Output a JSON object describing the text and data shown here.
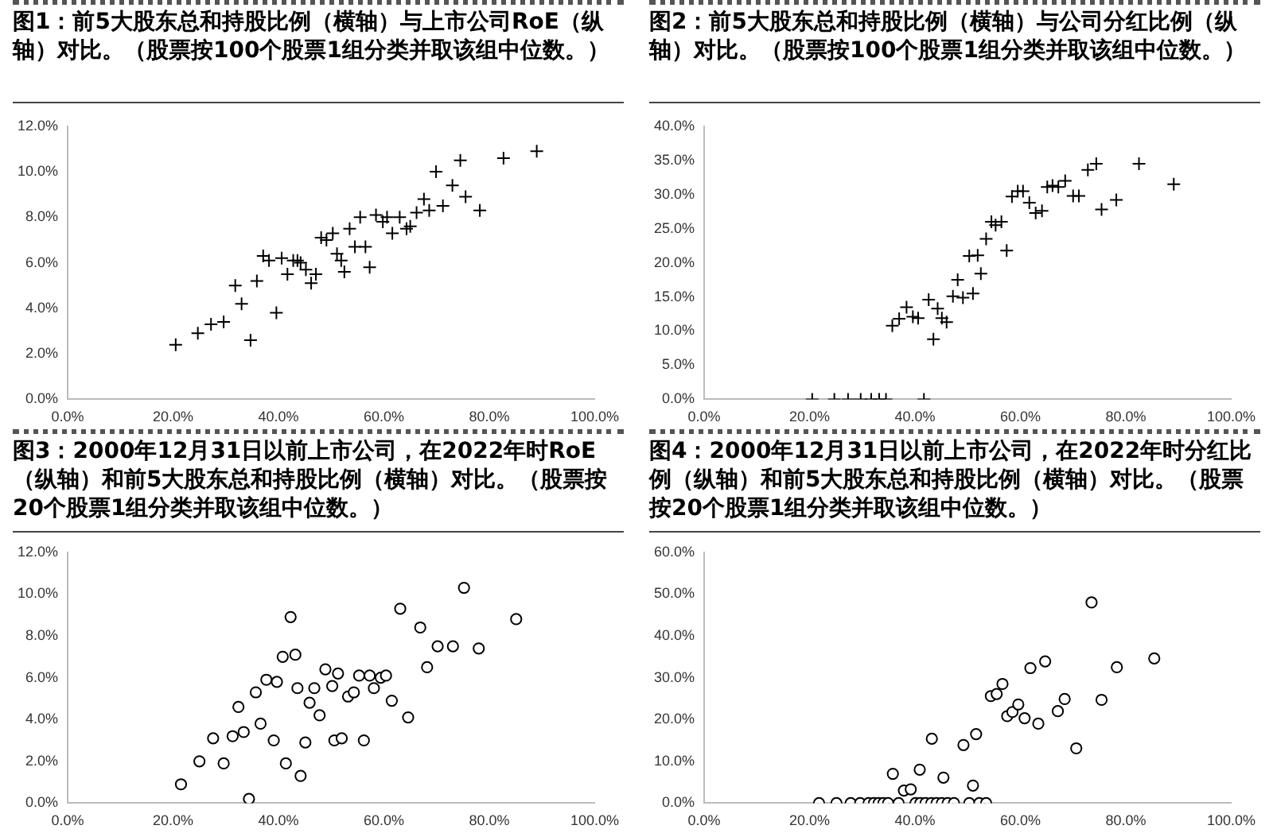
{
  "chart_data": [
    {
      "type": "scatter",
      "title": "图1：前5大股东总和持股比例（横轴）与上市公司RoE（纵轴）对比。（股票按100个股票1组分类并取该组中位数。）",
      "marker": "cross",
      "grid": false,
      "legend": false,
      "xlim": [
        0,
        100
      ],
      "xticks": [
        {
          "value": 0,
          "label": "0.0%"
        },
        {
          "value": 20,
          "label": "20.0%"
        },
        {
          "value": 40,
          "label": "40.0%"
        },
        {
          "value": 60,
          "label": "60.0%"
        },
        {
          "value": 80,
          "label": "80.0%"
        },
        {
          "value": 100,
          "label": "100.0%"
        }
      ],
      "ylim": [
        0,
        12
      ],
      "yticks": [
        {
          "value": 0,
          "label": "0.0%"
        },
        {
          "value": 2,
          "label": "2.0%"
        },
        {
          "value": 4,
          "label": "4.0%"
        },
        {
          "value": 6,
          "label": "6.0%"
        },
        {
          "value": 8,
          "label": "8.0%"
        },
        {
          "value": 10,
          "label": "10.0%"
        },
        {
          "value": 12,
          "label": "12.0%"
        }
      ],
      "series": [
        {
          "color": "#000000",
          "x": [
            20.5,
            24.7,
            27.2,
            29.6,
            31.8,
            33.0,
            34.7,
            35.9,
            37.1,
            38.2,
            39.6,
            40.6,
            41.7,
            42.8,
            43.6,
            44.2,
            45.2,
            46.2,
            47.1,
            48.1,
            49.1,
            50.3,
            51.1,
            51.9,
            52.5,
            53.5,
            54.5,
            55.5,
            56.5,
            57.3,
            58.5,
            59.8,
            60.6,
            61.6,
            63.0,
            64.3,
            65.0,
            66.2,
            67.6,
            68.6,
            69.9,
            71.2,
            73.0,
            74.5,
            75.5,
            78.2,
            82.7,
            89.0
          ],
          "values": [
            2.4,
            2.9,
            3.3,
            3.4,
            5.0,
            4.2,
            2.6,
            5.2,
            6.3,
            6.1,
            3.8,
            6.2,
            5.5,
            6.1,
            6.1,
            6.0,
            5.7,
            5.1,
            5.5,
            7.1,
            7.0,
            7.3,
            6.4,
            6.1,
            5.6,
            7.5,
            6.7,
            8.0,
            6.7,
            5.8,
            8.1,
            7.8,
            8.0,
            7.3,
            8.0,
            7.5,
            7.6,
            8.2,
            8.8,
            8.3,
            10.0,
            8.5,
            9.4,
            10.5,
            8.9,
            8.3,
            10.6,
            10.9
          ]
        }
      ]
    },
    {
      "type": "scatter",
      "title": "图2：前5大股东总和持股比例（横轴）与公司分红比例（纵轴）对比。（股票按100个股票1组分类并取该组中位数。）",
      "marker": "cross",
      "grid": false,
      "legend": false,
      "xlim": [
        0,
        100
      ],
      "xticks": [
        {
          "value": 0,
          "label": "0.0%"
        },
        {
          "value": 20,
          "label": "20.0%"
        },
        {
          "value": 40,
          "label": "40.0%"
        },
        {
          "value": 60,
          "label": "60.0%"
        },
        {
          "value": 80,
          "label": "80.0%"
        },
        {
          "value": 100,
          "label": "100.0%"
        }
      ],
      "ylim": [
        0,
        40
      ],
      "yticks": [
        {
          "value": 0,
          "label": "0.0%"
        },
        {
          "value": 5,
          "label": "5.0%"
        },
        {
          "value": 10,
          "label": "10.0%"
        },
        {
          "value": 15,
          "label": "15.0%"
        },
        {
          "value": 20,
          "label": "20.0%"
        },
        {
          "value": 25,
          "label": "25.0%"
        },
        {
          "value": 30,
          "label": "30.0%"
        },
        {
          "value": 35,
          "label": "35.0%"
        },
        {
          "value": 40,
          "label": "40.0%"
        }
      ],
      "series": [
        {
          "color": "#000000",
          "x": [
            20.5,
            24.7,
            27.3,
            29.7,
            31.7,
            33.2,
            34.5,
            41.7,
            35.7,
            37.0,
            38.4,
            39.6,
            40.6,
            42.6,
            43.5,
            44.3,
            45.1,
            46.0,
            47.2,
            48.1,
            49.1,
            50.3,
            51.0,
            51.9,
            52.5,
            53.5,
            54.5,
            55.3,
            56.4,
            57.4,
            58.4,
            59.5,
            60.5,
            61.7,
            62.9,
            64.1,
            65.1,
            66.1,
            67.2,
            68.5,
            70.0,
            71.1,
            72.8,
            74.4,
            75.4,
            78.2,
            82.5,
            89.1
          ],
          "values": [
            0,
            0,
            0,
            0,
            0,
            0,
            0,
            0,
            10.8,
            11.8,
            13.5,
            12.1,
            11.9,
            14.6,
            8.8,
            13.3,
            11.9,
            11.3,
            15.1,
            17.5,
            14.9,
            21.0,
            15.5,
            21.1,
            18.4,
            23.5,
            26.0,
            25.5,
            26.0,
            21.8,
            29.7,
            30.5,
            30.5,
            28.8,
            27.3,
            27.6,
            31.1,
            31.3,
            31.1,
            32.0,
            29.8,
            29.8,
            33.6,
            34.5,
            27.8,
            29.2,
            34.5,
            31.5
          ]
        }
      ]
    },
    {
      "type": "scatter",
      "title": "图3：2000年12月31日以前上市公司，在2022年时RoE（纵轴）和前5大股东总和持股比例（横轴）对比。（股票按20个股票1组分类并取该组中位数。）",
      "marker": "circle",
      "grid": false,
      "legend": false,
      "xlim": [
        0,
        100
      ],
      "xticks": [
        {
          "value": 0,
          "label": "0.0%"
        },
        {
          "value": 20,
          "label": "20.0%"
        },
        {
          "value": 40,
          "label": "40.0%"
        },
        {
          "value": 60,
          "label": "60.0%"
        },
        {
          "value": 80,
          "label": "80.0%"
        },
        {
          "value": 100,
          "label": "100.0%"
        }
      ],
      "ylim": [
        0,
        12
      ],
      "yticks": [
        {
          "value": 0,
          "label": "0.0%"
        },
        {
          "value": 2,
          "label": "2.0%"
        },
        {
          "value": 4,
          "label": "4.0%"
        },
        {
          "value": 6,
          "label": "6.0%"
        },
        {
          "value": 8,
          "label": "8.0%"
        },
        {
          "value": 10,
          "label": "10.0%"
        },
        {
          "value": 12,
          "label": "12.0%"
        }
      ],
      "series": [
        {
          "color": "#000000",
          "x": [
            21.5,
            25.0,
            27.6,
            29.6,
            31.3,
            32.4,
            33.4,
            34.4,
            35.7,
            36.6,
            37.7,
            39.1,
            39.7,
            40.8,
            41.4,
            42.3,
            43.2,
            43.6,
            44.2,
            45.1,
            45.9,
            46.8,
            47.8,
            48.9,
            50.2,
            50.6,
            51.3,
            52.0,
            53.2,
            54.3,
            55.3,
            56.2,
            57.3,
            58.1,
            59.4,
            60.4,
            61.5,
            63.1,
            64.6,
            66.9,
            68.2,
            70.2,
            73.1,
            75.2,
            78.0,
            85.1
          ],
          "values": [
            0.9,
            2.0,
            3.1,
            1.9,
            3.2,
            4.6,
            3.4,
            0.2,
            5.3,
            3.8,
            5.9,
            3.0,
            5.8,
            7.0,
            1.9,
            8.9,
            7.1,
            5.5,
            1.3,
            2.9,
            4.8,
            5.5,
            4.2,
            6.4,
            5.6,
            3.0,
            6.2,
            3.1,
            5.1,
            5.3,
            6.1,
            3.0,
            6.1,
            5.5,
            6.0,
            6.1,
            4.9,
            9.3,
            4.1,
            8.4,
            6.5,
            7.5,
            7.5,
            10.3,
            7.4,
            8.8
          ]
        }
      ]
    },
    {
      "type": "scatter",
      "title": "图4：2000年12月31日以前上市公司，在2022年时分红比例（纵轴）和前5大股东总和持股比例（横轴）对比。（股票按20个股票1组分类并取该组中位数。）",
      "marker": "circle",
      "grid": false,
      "legend": false,
      "xlim": [
        0,
        100
      ],
      "xticks": [
        {
          "value": 0,
          "label": "0.0%"
        },
        {
          "value": 20,
          "label": "20.0%"
        },
        {
          "value": 40,
          "label": "40.0%"
        },
        {
          "value": 60,
          "label": "60.0%"
        },
        {
          "value": 80,
          "label": "80.0%"
        },
        {
          "value": 100,
          "label": "100.0%"
        }
      ],
      "ylim": [
        0,
        60
      ],
      "yticks": [
        {
          "value": 0,
          "label": "0.0%"
        },
        {
          "value": 10,
          "label": "10.0%"
        },
        {
          "value": 20,
          "label": "20.0%"
        },
        {
          "value": 30,
          "label": "30.0%"
        },
        {
          "value": 40,
          "label": "40.0%"
        },
        {
          "value": 50,
          "label": "50.0%"
        },
        {
          "value": 60,
          "label": "60.0%"
        }
      ],
      "series": [
        {
          "color": "#000000",
          "x": [
            21.8,
            25.1,
            27.8,
            29.6,
            31.2,
            32.2,
            33.1,
            34.0,
            34.9,
            36.9,
            40.1,
            41.0,
            42.0,
            43.1,
            44.1,
            45.1,
            46.2,
            47.4,
            50.3,
            52.2,
            53.5,
            35.8,
            37.9,
            39.2,
            40.9,
            43.2,
            45.4,
            49.2,
            51.0,
            51.6,
            54.4,
            55.5,
            56.6,
            57.5,
            58.5,
            59.6,
            60.8,
            61.9,
            63.4,
            64.7,
            67.1,
            68.4,
            70.6,
            73.5,
            75.4,
            78.3,
            85.4
          ],
          "values": [
            0,
            0,
            0,
            0,
            0,
            0,
            0,
            0,
            0,
            0,
            0,
            0,
            0,
            0,
            0,
            0,
            0,
            0,
            0,
            0,
            0,
            7.0,
            3.0,
            3.3,
            8.0,
            15.4,
            6.1,
            13.9,
            4.2,
            16.5,
            25.6,
            26.1,
            28.5,
            20.8,
            21.8,
            23.6,
            20.3,
            32.3,
            19.0,
            33.9,
            22.0,
            24.9,
            13.1,
            48.0,
            24.7,
            32.5,
            34.6
          ]
        }
      ]
    }
  ]
}
